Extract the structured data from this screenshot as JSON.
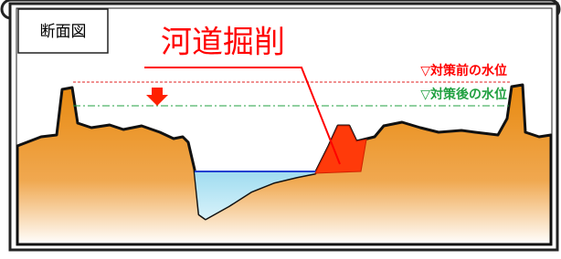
{
  "panel_label": "断面図",
  "title": "河道掘削",
  "levels": {
    "before": "▽対策前の水位",
    "after": "▽対策後の水位"
  }
}
